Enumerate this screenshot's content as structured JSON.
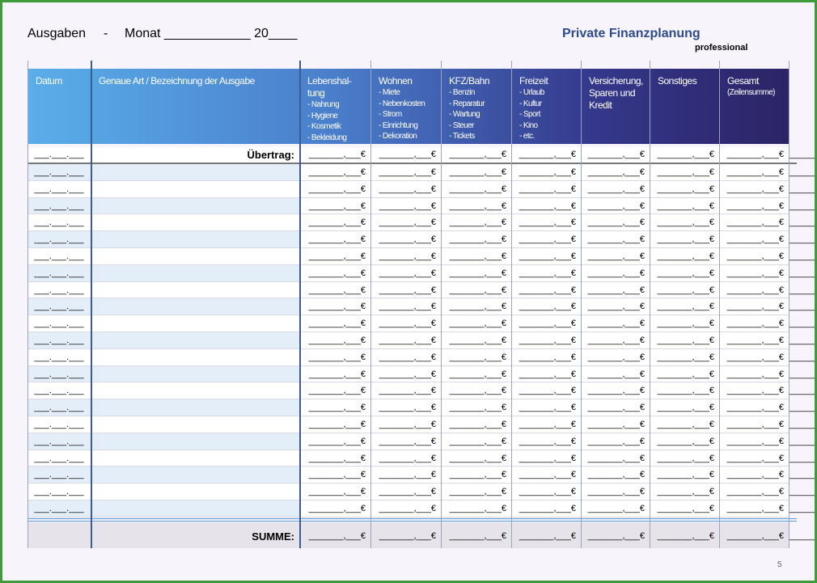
{
  "header": {
    "left": [
      "Ausgaben",
      "-",
      "Monat ____________ 20____"
    ],
    "title": "Private Finanzplanung",
    "subtitle": "professional"
  },
  "table": {
    "columns": [
      {
        "title": "Datum"
      },
      {
        "title": "Genaue Art / Bezeichnung  der Ausgabe"
      },
      {
        "title": "Lebenshal-\ntung",
        "items": [
          "- Nahrung",
          "- Hygiene",
          "- Kosmetik",
          "- Bekleidung"
        ]
      },
      {
        "title": "Wohnen",
        "items": [
          "- Miete",
          "- Nebenkosten",
          "- Strom",
          "- Einrichtung",
          "- Dekoration"
        ]
      },
      {
        "title": "KFZ/Bahn",
        "items": [
          "- Benzin",
          "- Reparatur",
          "- Wartung",
          "- Steuer",
          "- Tickets"
        ]
      },
      {
        "title": "Freizeit",
        "items": [
          "- Urlaub",
          "- Kultur",
          "- Sport",
          "- Kino",
          "- etc."
        ]
      },
      {
        "title": "Versicherung, Sparen und Kredit"
      },
      {
        "title": "Sonstiges"
      },
      {
        "title": "Gesamt",
        "items": [
          "(Zeilensumme)"
        ]
      }
    ],
    "carry_over": {
      "date": "___.___.___",
      "label": "Übertrag:",
      "amounts": [
        "_______,___€",
        "_______,___€",
        "_______,___€",
        "_______,___€",
        "_______,___€",
        "_______,___€",
        "_______,___€",
        "_______,___€"
      ]
    },
    "rows": [
      [
        "___.___.___",
        "_______,___€",
        "_______,___€",
        "_______,___€",
        "_______,___€",
        "_______,___€",
        "_______,___€",
        "_______,___€",
        "_______,___€"
      ],
      [
        "___.___.___",
        "_______,___€",
        "_______,___€",
        "_______,___€",
        "_______,___€",
        "_______,___€",
        "_______,___€",
        "_______,___€",
        "_______,___€"
      ],
      [
        "___.___.___",
        "_______,___€",
        "_______,___€",
        "_______,___€",
        "_______,___€",
        "_______,___€",
        "_______,___€",
        "_______,___€",
        "_______,___€"
      ],
      [
        "___.___.___",
        "_______,___€",
        "_______,___€",
        "_______,___€",
        "_______,___€",
        "_______,___€",
        "_______,___€",
        "_______,___€",
        "_______,___€"
      ],
      [
        "___.___.___",
        "_______,___€",
        "_______,___€",
        "_______,___€",
        "_______,___€",
        "_______,___€",
        "_______,___€",
        "_______,___€",
        "_______,___€"
      ],
      [
        "___.___.___",
        "_______,___€",
        "_______,___€",
        "_______,___€",
        "_______,___€",
        "_______,___€",
        "_______,___€",
        "_______,___€",
        "_______,___€"
      ],
      [
        "___.___.___",
        "_______,___€",
        "_______,___€",
        "_______,___€",
        "_______,___€",
        "_______,___€",
        "_______,___€",
        "_______,___€",
        "_______,___€"
      ],
      [
        "___.___.___",
        "_______,___€",
        "_______,___€",
        "_______,___€",
        "_______,___€",
        "_______,___€",
        "_______,___€",
        "_______,___€",
        "_______,___€"
      ],
      [
        "___.___.___",
        "_______,___€",
        "_______,___€",
        "_______,___€",
        "_______,___€",
        "_______,___€",
        "_______,___€",
        "_______,___€",
        "_______,___€"
      ],
      [
        "___.___.___",
        "_______,___€",
        "_______,___€",
        "_______,___€",
        "_______,___€",
        "_______,___€",
        "_______,___€",
        "_______,___€",
        "_______,___€"
      ],
      [
        "___.___.___",
        "_______,___€",
        "_______,___€",
        "_______,___€",
        "_______,___€",
        "_______,___€",
        "_______,___€",
        "_______,___€",
        "_______,___€"
      ],
      [
        "___.___.___",
        "_______,___€",
        "_______,___€",
        "_______,___€",
        "_______,___€",
        "_______,___€",
        "_______,___€",
        "_______,___€",
        "_______,___€"
      ],
      [
        "___.___.___",
        "_______,___€",
        "_______,___€",
        "_______,___€",
        "_______,___€",
        "_______,___€",
        "_______,___€",
        "_______,___€",
        "_______,___€"
      ],
      [
        "___.___.___",
        "_______,___€",
        "_______,___€",
        "_______,___€",
        "_______,___€",
        "_______,___€",
        "_______,___€",
        "_______,___€",
        "_______,___€"
      ],
      [
        "___.___.___",
        "_______,___€",
        "_______,___€",
        "_______,___€",
        "_______,___€",
        "_______,___€",
        "_______,___€",
        "_______,___€",
        "_______,___€"
      ],
      [
        "___.___.___",
        "_______,___€",
        "_______,___€",
        "_______,___€",
        "_______,___€",
        "_______,___€",
        "_______,___€",
        "_______,___€",
        "_______,___€"
      ],
      [
        "___.___.___",
        "_______,___€",
        "_______,___€",
        "_______,___€",
        "_______,___€",
        "_______,___€",
        "_______,___€",
        "_______,___€",
        "_______,___€"
      ],
      [
        "___.___.___",
        "_______,___€",
        "_______,___€",
        "_______,___€",
        "_______,___€",
        "_______,___€",
        "_______,___€",
        "_______,___€",
        "_______,___€"
      ],
      [
        "___.___.___",
        "_______,___€",
        "_______,___€",
        "_______,___€",
        "_______,___€",
        "_______,___€",
        "_______,___€",
        "_______,___€",
        "_______,___€"
      ],
      [
        "___.___.___",
        "_______,___€",
        "_______,___€",
        "_______,___€",
        "_______,___€",
        "_______,___€",
        "_______,___€",
        "_______,___€",
        "_______,___€"
      ],
      [
        "___.___.___",
        "_______,___€",
        "_______,___€",
        "_______,___€",
        "_______,___€",
        "_______,___€",
        "_______,___€",
        "_______,___€",
        "_______,___€"
      ]
    ],
    "total": {
      "label": "SUMME:",
      "amounts": [
        "_______,___€",
        "_______,___€",
        "_______,___€",
        "_______,___€",
        "_______,___€",
        "_______,___€",
        "_______,___€",
        "_______,___€"
      ]
    }
  },
  "footer": {
    "page": "5"
  }
}
